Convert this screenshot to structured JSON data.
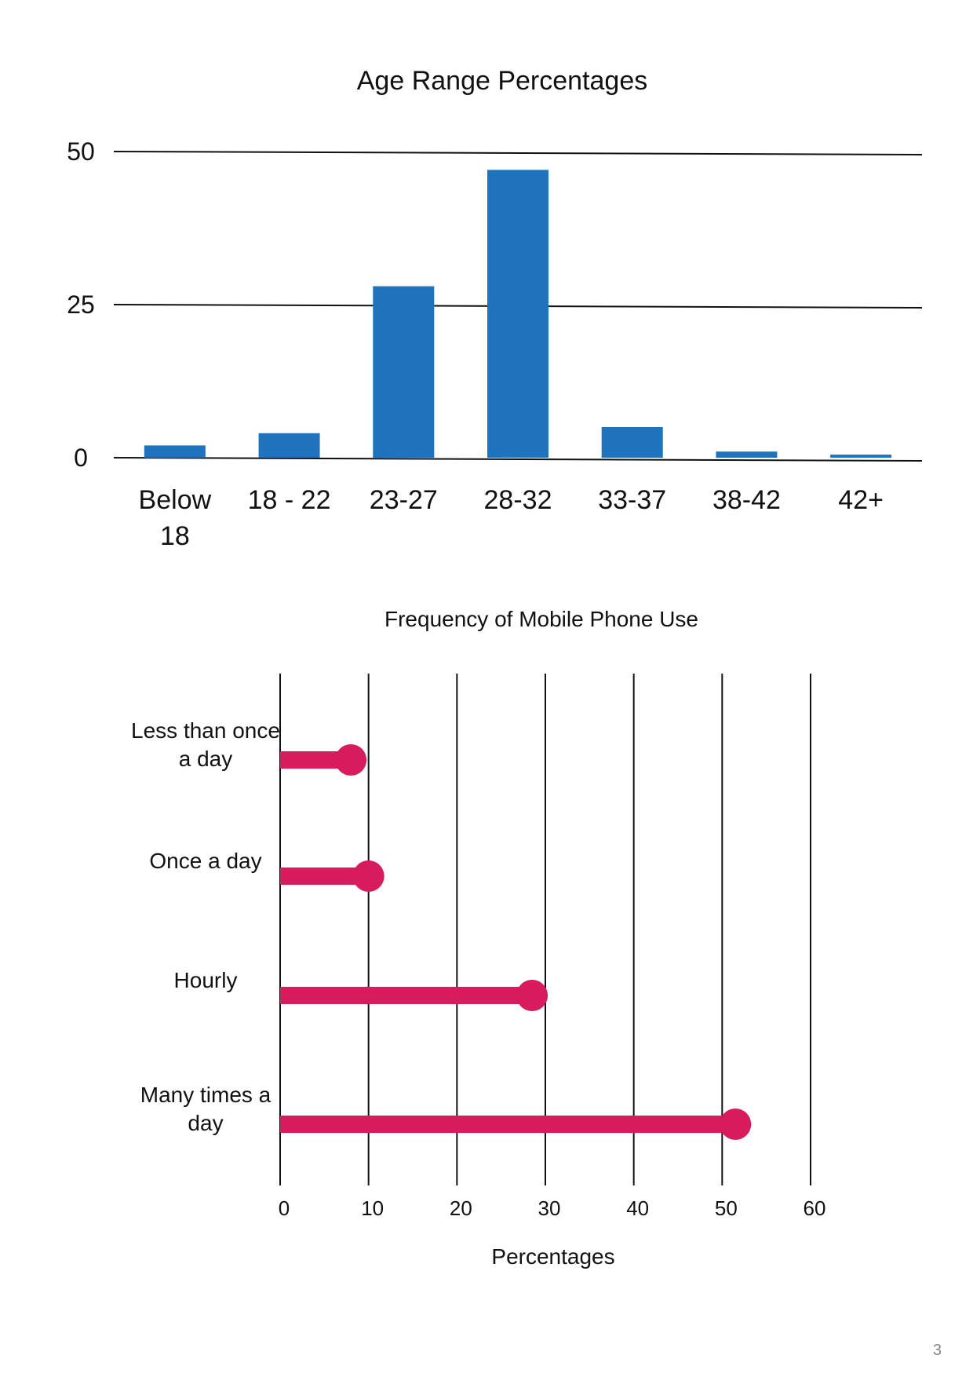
{
  "chart_data": [
    {
      "type": "bar",
      "title": "Age Range Percentages",
      "categories": [
        "Below 18",
        "18 - 22",
        "23-27",
        "28-32",
        "33-37",
        "38-42",
        "42+"
      ],
      "values": [
        2,
        4,
        28,
        47,
        5,
        1,
        0.5
      ],
      "yticks": [
        0,
        25,
        50
      ],
      "ylim": [
        0,
        50
      ],
      "grid": true,
      "bar_color": "#1f73bd"
    },
    {
      "type": "bar",
      "orientation": "horizontal",
      "title": "Frequency of Mobile Phone Use",
      "categories": [
        "Less than once a day",
        "Once a day",
        "Hourly",
        "Many times a day"
      ],
      "values": [
        8,
        10,
        28.5,
        51.5
      ],
      "xlabel": "Percentages",
      "xticks": [
        0,
        10,
        20,
        30,
        40,
        50,
        60
      ],
      "xlim": [
        0,
        60
      ],
      "grid": true,
      "bar_color": "#d81b5c"
    }
  ],
  "page_number": "3"
}
